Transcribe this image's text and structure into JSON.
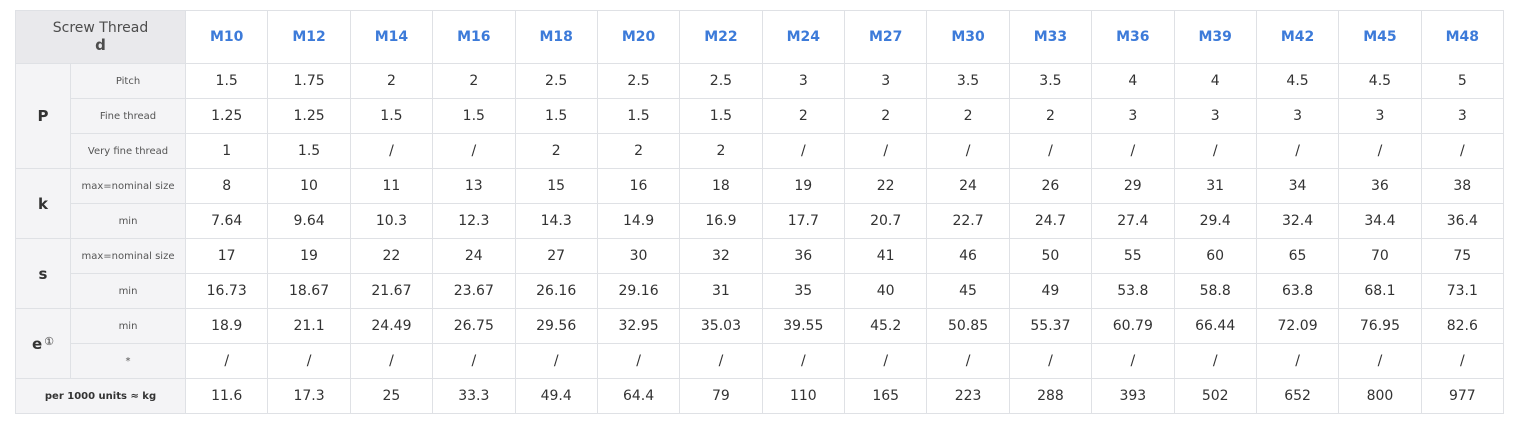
{
  "header": {
    "corner_line1": "Screw Thread",
    "corner_line2": "d",
    "sizes": [
      "M10",
      "M12",
      "M14",
      "M16",
      "M18",
      "M20",
      "M22",
      "M24",
      "M27",
      "M30",
      "M33",
      "M36",
      "M39",
      "M42",
      "M45",
      "M48"
    ]
  },
  "groups": [
    {
      "label": "P",
      "note": "",
      "rows": [
        {
          "label": "Pitch",
          "values": [
            "1.5",
            "1.75",
            "2",
            "2",
            "2.5",
            "2.5",
            "2.5",
            "3",
            "3",
            "3.5",
            "3.5",
            "4",
            "4",
            "4.5",
            "4.5",
            "5"
          ]
        },
        {
          "label": "Fine thread",
          "values": [
            "1.25",
            "1.25",
            "1.5",
            "1.5",
            "1.5",
            "1.5",
            "1.5",
            "2",
            "2",
            "2",
            "2",
            "3",
            "3",
            "3",
            "3",
            "3"
          ]
        },
        {
          "label": "Very fine thread",
          "values": [
            "1",
            "1.5",
            "/",
            "/",
            "2",
            "2",
            "2",
            "/",
            "/",
            "/",
            "/",
            "/",
            "/",
            "/",
            "/",
            "/"
          ]
        }
      ]
    },
    {
      "label": "k",
      "note": "",
      "rows": [
        {
          "label": "max=nominal size",
          "values": [
            "8",
            "10",
            "11",
            "13",
            "15",
            "16",
            "18",
            "19",
            "22",
            "24",
            "26",
            "29",
            "31",
            "34",
            "36",
            "38"
          ]
        },
        {
          "label": "min",
          "values": [
            "7.64",
            "9.64",
            "10.3",
            "12.3",
            "14.3",
            "14.9",
            "16.9",
            "17.7",
            "20.7",
            "22.7",
            "24.7",
            "27.4",
            "29.4",
            "32.4",
            "34.4",
            "36.4"
          ]
        }
      ]
    },
    {
      "label": "s",
      "note": "",
      "rows": [
        {
          "label": "max=nominal size",
          "values": [
            "17",
            "19",
            "22",
            "24",
            "27",
            "30",
            "32",
            "36",
            "41",
            "46",
            "50",
            "55",
            "60",
            "65",
            "70",
            "75"
          ]
        },
        {
          "label": "min",
          "values": [
            "16.73",
            "18.67",
            "21.67",
            "23.67",
            "26.16",
            "29.16",
            "31",
            "35",
            "40",
            "45",
            "49",
            "53.8",
            "58.8",
            "63.8",
            "68.1",
            "73.1"
          ]
        }
      ]
    },
    {
      "label": "e",
      "note": "①",
      "rows": [
        {
          "label": "min",
          "values": [
            "18.9",
            "21.1",
            "24.49",
            "26.75",
            "29.56",
            "32.95",
            "35.03",
            "39.55",
            "45.2",
            "50.85",
            "55.37",
            "60.79",
            "66.44",
            "72.09",
            "76.95",
            "82.6"
          ]
        },
        {
          "label": "*",
          "values": [
            "/",
            "/",
            "/",
            "/",
            "/",
            "/",
            "/",
            "/",
            "/",
            "/",
            "/",
            "/",
            "/",
            "/",
            "/",
            "/"
          ]
        }
      ]
    }
  ],
  "footer": {
    "label": "per 1000 units ≈ kg",
    "values": [
      "11.6",
      "17.3",
      "25",
      "33.3",
      "49.4",
      "64.4",
      "79",
      "110",
      "165",
      "223",
      "288",
      "393",
      "502",
      "652",
      "800",
      "977"
    ]
  }
}
